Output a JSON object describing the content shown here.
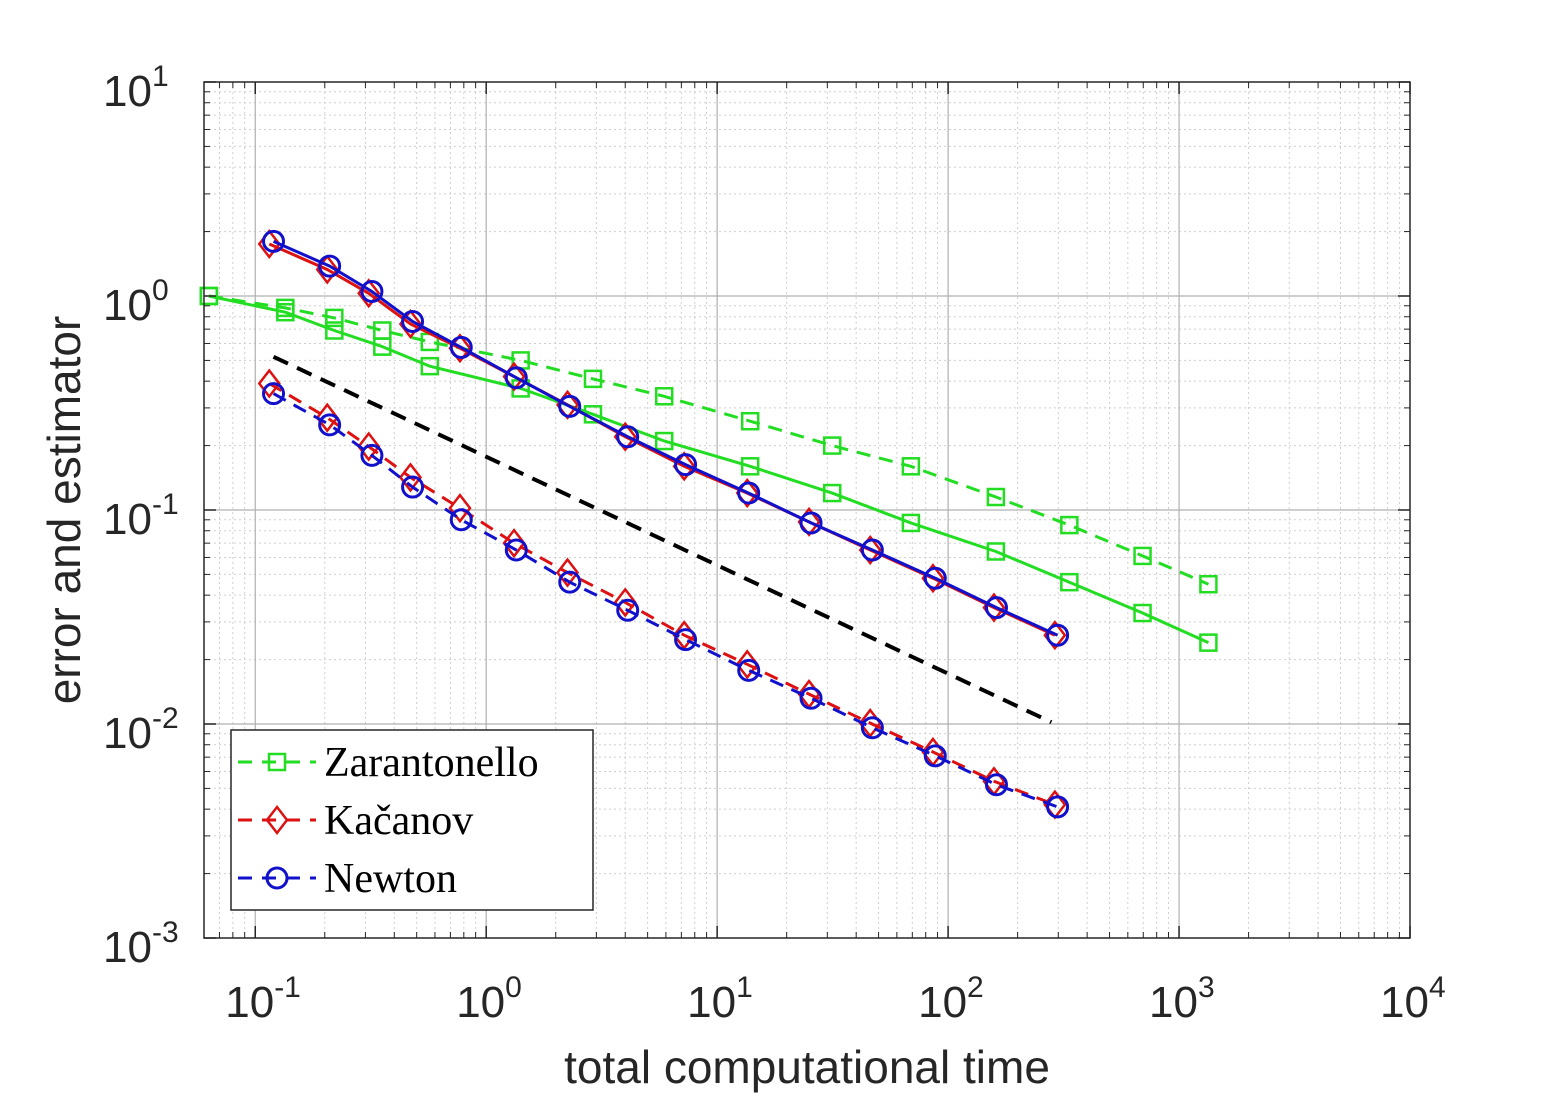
{
  "chart_data": {
    "type": "line",
    "title": "",
    "xlabel": "total computational time",
    "ylabel": "error and estimator",
    "xscale": "log",
    "yscale": "log",
    "xlim": [
      0.06,
      10000
    ],
    "ylim": [
      0.001,
      10
    ],
    "grid": true,
    "legend_position": "bottom-left",
    "x_ticks": [
      {
        "base": "10",
        "exp": "-1",
        "value": 0.1
      },
      {
        "base": "10",
        "exp": "0",
        "value": 1
      },
      {
        "base": "10",
        "exp": "1",
        "value": 10
      },
      {
        "base": "10",
        "exp": "2",
        "value": 100
      },
      {
        "base": "10",
        "exp": "3",
        "value": 1000
      },
      {
        "base": "10",
        "exp": "4",
        "value": 10000
      }
    ],
    "y_ticks": [
      {
        "base": "10",
        "exp": "-3",
        "value": 0.001
      },
      {
        "base": "10",
        "exp": "-2",
        "value": 0.01
      },
      {
        "base": "10",
        "exp": "-1",
        "value": 0.1
      },
      {
        "base": "10",
        "exp": "0",
        "value": 1
      },
      {
        "base": "10",
        "exp": "1",
        "value": 10
      }
    ],
    "legend": [
      {
        "name": "Zarantonello",
        "color": "#22dd22",
        "marker": "square"
      },
      {
        "name": "Kačanov",
        "color": "#dd1111",
        "marker": "diamond"
      },
      {
        "name": "Newton",
        "color": "#1111cc",
        "marker": "circle"
      }
    ],
    "series": [
      {
        "name": "Zarantonello error",
        "method": "Zarantonello",
        "style": "solid",
        "color": "#22dd22",
        "marker": "square",
        "x": [
          0.063,
          0.135,
          0.22,
          0.355,
          0.57,
          1.41,
          2.9,
          5.9,
          13.9,
          31.5,
          69,
          161,
          335,
          695,
          1340
        ],
        "y": [
          1.0,
          0.84,
          0.69,
          0.58,
          0.47,
          0.37,
          0.28,
          0.21,
          0.16,
          0.12,
          0.087,
          0.064,
          0.046,
          0.033,
          0.024
        ]
      },
      {
        "name": "Zarantonello estimator",
        "method": "Zarantonello",
        "style": "dashed",
        "color": "#22dd22",
        "marker": "square",
        "x": [
          0.063,
          0.135,
          0.22,
          0.355,
          0.57,
          1.41,
          2.9,
          5.9,
          13.9,
          31.5,
          69,
          161,
          335,
          695,
          1340
        ],
        "y": [
          1.0,
          0.88,
          0.79,
          0.69,
          0.61,
          0.5,
          0.41,
          0.34,
          0.26,
          0.2,
          0.16,
          0.115,
          0.085,
          0.061,
          0.045
        ]
      },
      {
        "name": "Kačanov error",
        "method": "Kačanov",
        "style": "solid",
        "color": "#dd1111",
        "marker": "diamond",
        "x": [
          0.115,
          0.205,
          0.31,
          0.47,
          0.77,
          1.32,
          2.25,
          4.0,
          7.2,
          13.5,
          25,
          46,
          86,
          158,
          290
        ],
        "y": [
          1.75,
          1.33,
          1.03,
          0.74,
          0.57,
          0.42,
          0.31,
          0.22,
          0.16,
          0.12,
          0.088,
          0.065,
          0.048,
          0.035,
          0.026
        ]
      },
      {
        "name": "Kačanov estimator",
        "method": "Kačanov",
        "style": "dashed",
        "color": "#dd1111",
        "marker": "diamond",
        "x": [
          0.115,
          0.205,
          0.31,
          0.47,
          0.77,
          1.32,
          2.25,
          4.0,
          7.2,
          13.5,
          25,
          46,
          86,
          158,
          290
        ],
        "y": [
          0.39,
          0.27,
          0.198,
          0.142,
          0.102,
          0.07,
          0.051,
          0.037,
          0.026,
          0.019,
          0.0138,
          0.0101,
          0.0074,
          0.0054,
          0.0042
        ]
      },
      {
        "name": "Newton error",
        "method": "Newton",
        "style": "solid",
        "color": "#1111cc",
        "marker": "circle",
        "x": [
          0.12,
          0.21,
          0.32,
          0.48,
          0.78,
          1.35,
          2.3,
          4.1,
          7.3,
          13.7,
          25.5,
          47,
          88,
          162,
          298
        ],
        "y": [
          1.8,
          1.38,
          1.05,
          0.76,
          0.575,
          0.415,
          0.305,
          0.22,
          0.163,
          0.12,
          0.087,
          0.065,
          0.048,
          0.035,
          0.026
        ]
      },
      {
        "name": "Newton estimator",
        "method": "Newton",
        "style": "dashed",
        "color": "#1111cc",
        "marker": "circle",
        "x": [
          0.12,
          0.21,
          0.32,
          0.48,
          0.78,
          1.35,
          2.3,
          4.1,
          7.3,
          13.7,
          25.5,
          47,
          88,
          162,
          298
        ],
        "y": [
          0.35,
          0.25,
          0.18,
          0.128,
          0.09,
          0.065,
          0.046,
          0.034,
          0.0248,
          0.0178,
          0.0132,
          0.0096,
          0.0071,
          0.0052,
          0.0041
        ]
      },
      {
        "name": "reference slope",
        "method": "reference",
        "style": "dashed",
        "color": "#000000",
        "marker": "none",
        "x": [
          0.12,
          280
        ],
        "y": [
          0.52,
          0.0102
        ]
      }
    ]
  }
}
